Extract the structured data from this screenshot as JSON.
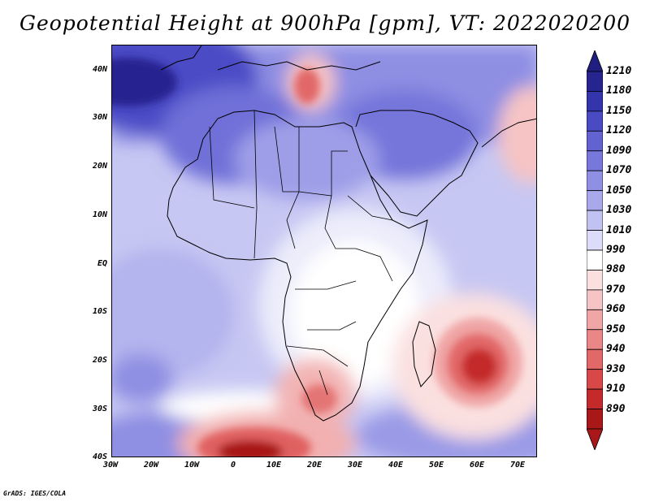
{
  "title": "Geopotential Height at 900hPa [gpm], VT: 2022020200",
  "credit": "GrADS: IGES/COLA",
  "map": {
    "lat_labels": [
      "40N",
      "30N",
      "20N",
      "10N",
      "EQ",
      "10S",
      "20S",
      "30S",
      "40S"
    ],
    "lon_labels": [
      "30W",
      "20W",
      "10W",
      "0",
      "10E",
      "20E",
      "30E",
      "40E",
      "50E",
      "60E",
      "70E"
    ]
  },
  "colorbar": {
    "labels": [
      "1210",
      "1180",
      "1150",
      "1120",
      "1090",
      "1070",
      "1050",
      "1030",
      "1010",
      "990",
      "980",
      "970",
      "960",
      "950",
      "940",
      "930",
      "910",
      "890"
    ],
    "colors": [
      "#26248f",
      "#3434ad",
      "#4a4ac4",
      "#6262d2",
      "#7878dc",
      "#8f8fe3",
      "#a8a8eb",
      "#c2c2f2",
      "#dcdcf8",
      "#ffffff",
      "#fbe0e0",
      "#f6c4c4",
      "#f0a6a6",
      "#ea8686",
      "#e26868",
      "#d84848",
      "#c52a2a",
      "#a81818"
    ],
    "colors_note": "bottom triangle #a81818, top triangle #1f1f80"
  }
}
